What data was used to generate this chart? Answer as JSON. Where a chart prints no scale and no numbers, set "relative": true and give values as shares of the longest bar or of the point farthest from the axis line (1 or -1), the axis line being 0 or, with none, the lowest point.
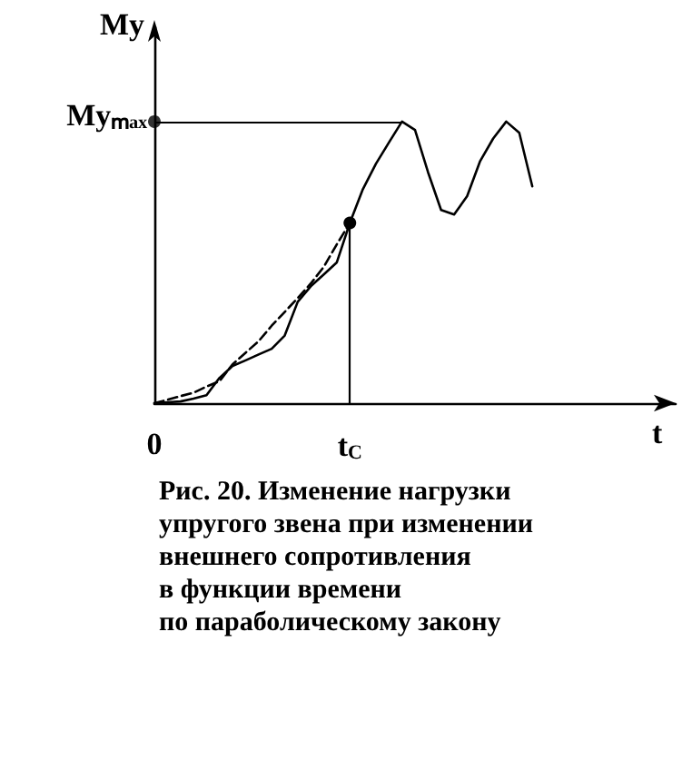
{
  "chart_data": {
    "type": "line",
    "relative": true,
    "xlabel": "t",
    "ylabel": "My",
    "categories": [
      "0",
      null,
      null,
      null,
      null,
      null,
      null,
      null,
      null,
      null,
      null,
      null,
      null,
      null,
      null,
      "t$_{C}$",
      null,
      null,
      null,
      null,
      null,
      null,
      null,
      null,
      null,
      null,
      null,
      null,
      null,
      null,
      null,
      null,
      null,
      null,
      null,
      null,
      null,
      null,
      null,
      null,
      null
    ],
    "series": [
      {
        "color": "#000000",
        "line_style": "solid",
        "values": [
          0,
          0.003,
          0.006,
          0.016,
          0.028,
          0.09,
          0.132,
          0.152,
          0.173,
          0.193,
          0.24,
          0.36,
          0.415,
          0.457,
          0.5,
          0.64,
          0.76,
          0.85,
          0.926,
          1,
          0.97,
          0.82,
          0.686,
          0.67,
          0.735,
          0.86,
          0.94,
          1,
          0.96,
          0.77,
          null,
          null,
          null,
          null,
          null,
          null,
          null,
          null,
          null,
          null,
          null
        ]
      },
      {
        "color": "#000000",
        "line_style": "dashed",
        "values": [
          0,
          0.012,
          0.025,
          0.037,
          0.059,
          0.078,
          0.138,
          0.179,
          0.22,
          0.275,
          0.324,
          0.373,
          0.425,
          0.484,
          0.564,
          0.64,
          null,
          null,
          null,
          null,
          null,
          null,
          null,
          null,
          null,
          null,
          null,
          null,
          null,
          null,
          null,
          null,
          null,
          null,
          null,
          null,
          null,
          null,
          null,
          null,
          null
        ]
      },
      {
        "type": "scatter",
        "color": "#000000",
        "marker": "circle",
        "values": [
          1,
          null,
          null,
          null,
          null,
          null,
          null,
          null,
          null,
          null,
          null,
          null,
          null,
          null,
          null,
          null,
          null,
          null,
          null,
          null,
          null,
          null,
          null,
          null,
          null,
          null,
          null,
          null,
          null,
          null,
          null,
          null,
          null,
          null,
          null,
          null,
          null,
          null,
          null,
          null,
          null
        ]
      }
    ],
    "ref_lines": [
      {
        "axis": "y",
        "value": 1,
        "label": "Myₘₐₓ",
        "color": "#000000"
      },
      {
        "axis": "x",
        "value": "t$_{C}$",
        "color": "#000000"
      }
    ],
    "annotations": [
      "Рис. 20. Изменение нагрузки\nупругого звена при изменении\nвнешнего сопротивления\nв функции времени\nпо параболическому закону"
    ],
    "marker": "none",
    "grid": false
  }
}
